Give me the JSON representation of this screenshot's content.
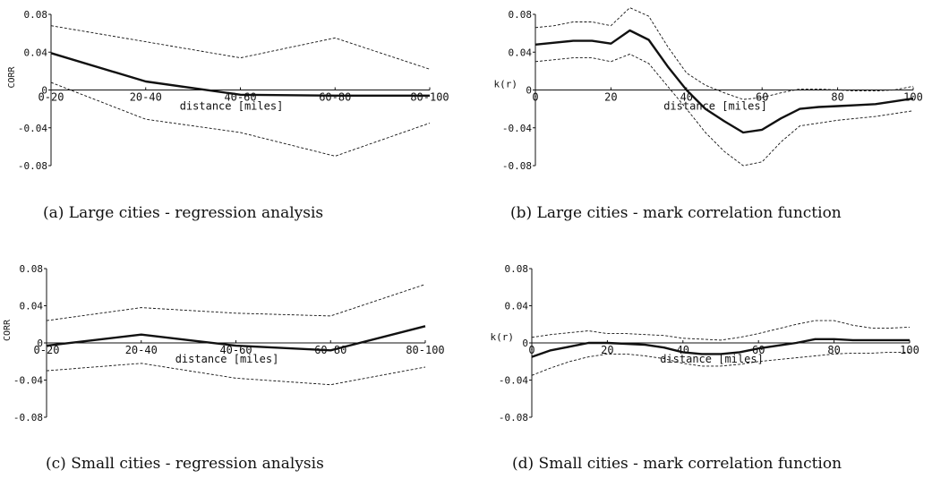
{
  "panels": [
    {
      "caption": "(a) Large cities - regression analysis",
      "chart_data": {
        "type": "line",
        "categories": [
          "0-20",
          "20-40",
          "40-60",
          "60-80",
          "80-100"
        ],
        "xlabel": "distance [miles]",
        "ylabel": "CORR",
        "ylim": [
          -0.08,
          0.08
        ],
        "yticks": [
          "0.08",
          "0.04",
          "0",
          "-0.04",
          "-0.08"
        ],
        "grid": false,
        "series": [
          {
            "style": "solid",
            "values": [
              0.039,
              0.009,
              -0.005,
              -0.006,
              -0.006
            ]
          },
          {
            "style": "dashed",
            "values": [
              0.068,
              0.051,
              0.034,
              0.055,
              0.022
            ]
          },
          {
            "style": "dashed",
            "values": [
              0.008,
              -0.031,
              -0.045,
              -0.07,
              -0.035
            ]
          }
        ]
      }
    },
    {
      "caption": "(b) Large cities - mark correlation function",
      "chart_data": {
        "type": "line",
        "xlim": [
          0,
          100
        ],
        "xticks": [
          "0",
          "20",
          "40",
          "60",
          "80",
          "100"
        ],
        "xlabel": "distance [miles]",
        "ylabel": "k(r)",
        "ylim": [
          -0.08,
          0.08
        ],
        "yticks": [
          "0.08",
          "0.04",
          "0",
          "-0.04",
          "-0.08"
        ],
        "grid": false,
        "series": [
          {
            "style": "solid",
            "x": [
              0,
              5,
              10,
              15,
              20,
              25,
              30,
              35,
              40,
              45,
              50,
              55,
              60,
              65,
              70,
              75,
              80,
              85,
              90,
              95,
              100
            ],
            "values": [
              0.048,
              0.05,
              0.052,
              0.052,
              0.049,
              0.063,
              0.053,
              0.025,
              0.0,
              -0.02,
              -0.033,
              -0.045,
              -0.042,
              -0.03,
              -0.02,
              -0.018,
              -0.017,
              -0.016,
              -0.015,
              -0.012,
              -0.009
            ]
          },
          {
            "style": "dashed",
            "x": [
              0,
              5,
              10,
              15,
              20,
              25,
              30,
              35,
              40,
              45,
              50,
              55,
              60,
              65,
              70,
              75,
              80,
              85,
              90,
              95,
              100
            ],
            "values": [
              0.066,
              0.068,
              0.072,
              0.072,
              0.068,
              0.087,
              0.078,
              0.046,
              0.018,
              0.005,
              -0.003,
              -0.01,
              -0.008,
              -0.003,
              0.001,
              0.001,
              0.0,
              -0.001,
              -0.001,
              0.0,
              0.004
            ]
          },
          {
            "style": "dashed",
            "x": [
              0,
              5,
              10,
              15,
              20,
              25,
              30,
              35,
              40,
              45,
              50,
              55,
              60,
              65,
              70,
              75,
              80,
              85,
              90,
              95,
              100
            ],
            "values": [
              0.03,
              0.032,
              0.034,
              0.034,
              0.03,
              0.038,
              0.028,
              0.004,
              -0.02,
              -0.045,
              -0.065,
              -0.08,
              -0.076,
              -0.055,
              -0.038,
              -0.035,
              -0.032,
              -0.03,
              -0.028,
              -0.025,
              -0.022
            ]
          }
        ]
      }
    },
    {
      "caption": "(c) Small cities - regression analysis",
      "chart_data": {
        "type": "line",
        "categories": [
          "0-20",
          "20-40",
          "40-60",
          "60-80",
          "80-100"
        ],
        "xlabel": "distance [miles]",
        "ylabel": "CORR",
        "ylim": [
          -0.08,
          0.08
        ],
        "yticks": [
          "0.08",
          "0.04",
          "0",
          "-0.04",
          "-0.08"
        ],
        "grid": false,
        "series": [
          {
            "style": "solid",
            "values": [
              -0.003,
              0.009,
              -0.003,
              -0.008,
              0.018
            ]
          },
          {
            "style": "dashed",
            "values": [
              0.024,
              0.038,
              0.032,
              0.029,
              0.063
            ]
          },
          {
            "style": "dashed",
            "values": [
              -0.03,
              -0.022,
              -0.038,
              -0.045,
              -0.026
            ]
          }
        ]
      }
    },
    {
      "caption": "(d) Small cities - mark correlation function",
      "chart_data": {
        "type": "line",
        "xlim": [
          0,
          100
        ],
        "xticks": [
          "0",
          "20",
          "40",
          "60",
          "80",
          "100"
        ],
        "xlabel": "distance [miles]",
        "ylabel": "k(r)",
        "ylim": [
          -0.08,
          0.08
        ],
        "yticks": [
          "0.08",
          "0.04",
          "0",
          "-0.04",
          "-0.08"
        ],
        "grid": false,
        "series": [
          {
            "style": "solid",
            "x": [
              0,
              5,
              10,
              15,
              20,
              25,
              30,
              35,
              40,
              45,
              50,
              55,
              60,
              65,
              70,
              75,
              80,
              85,
              90,
              95,
              100
            ],
            "values": [
              -0.015,
              -0.008,
              -0.004,
              0.0,
              0.0,
              -0.001,
              -0.002,
              -0.005,
              -0.01,
              -0.012,
              -0.012,
              -0.01,
              -0.006,
              -0.003,
              0.0,
              0.004,
              0.004,
              0.003,
              0.003,
              0.003,
              0.003
            ]
          },
          {
            "style": "dashed",
            "x": [
              0,
              5,
              10,
              15,
              20,
              25,
              30,
              35,
              40,
              45,
              50,
              55,
              60,
              65,
              70,
              75,
              80,
              85,
              90,
              95,
              100
            ],
            "values": [
              0.006,
              0.009,
              0.011,
              0.013,
              0.01,
              0.01,
              0.009,
              0.008,
              0.005,
              0.004,
              0.003,
              0.006,
              0.01,
              0.015,
              0.02,
              0.024,
              0.024,
              0.019,
              0.016,
              0.016,
              0.017
            ]
          },
          {
            "style": "dashed",
            "x": [
              0,
              5,
              10,
              15,
              20,
              25,
              30,
              35,
              40,
              45,
              50,
              55,
              60,
              65,
              70,
              75,
              80,
              85,
              90,
              95,
              100
            ],
            "values": [
              -0.035,
              -0.027,
              -0.02,
              -0.015,
              -0.012,
              -0.012,
              -0.014,
              -0.017,
              -0.022,
              -0.025,
              -0.025,
              -0.023,
              -0.02,
              -0.018,
              -0.016,
              -0.014,
              -0.012,
              -0.011,
              -0.011,
              -0.01,
              -0.01
            ]
          }
        ]
      }
    }
  ]
}
